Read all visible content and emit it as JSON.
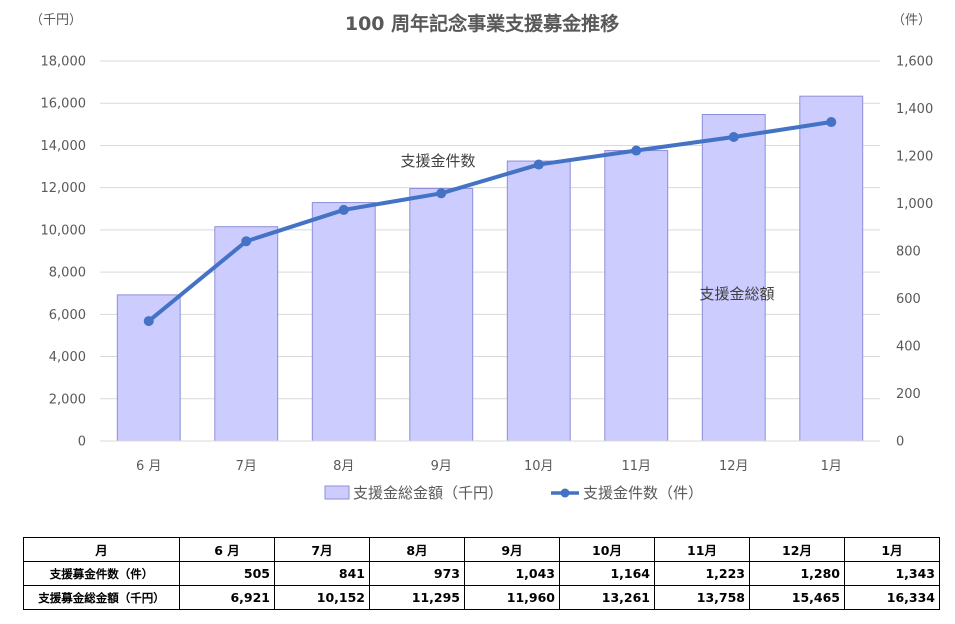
{
  "chart_data": {
    "type": "bar+line",
    "title": "100 周年記念事業支援募金推移",
    "left_unit": "（千円）",
    "right_unit": "（件）",
    "categories": [
      "6 月",
      "7月",
      "8月",
      "9月",
      "10月",
      "11月",
      "12月",
      "1月"
    ],
    "y_left": {
      "min": 0,
      "max": 18000,
      "step": 2000,
      "ticks": [
        "0",
        "2,000",
        "4,000",
        "6,000",
        "8,000",
        "10,000",
        "12,000",
        "14,000",
        "16,000",
        "18,000"
      ]
    },
    "y_right": {
      "min": 0,
      "max": 1600,
      "step": 200,
      "ticks": [
        "0",
        "200",
        "400",
        "600",
        "800",
        "1,000",
        "1,200",
        "1,400",
        "1,600"
      ]
    },
    "grid": true,
    "legend_position": "bottom",
    "series": [
      {
        "name": "支援金総金額（千円）",
        "type": "bar",
        "axis": "left",
        "color": "#ccccff",
        "border": "#8f8fd9",
        "values": [
          6921,
          10152,
          11295,
          11960,
          13261,
          13758,
          15465,
          16334
        ]
      },
      {
        "name": "支援金件数（件）",
        "type": "line",
        "axis": "right",
        "color": "#4472c4",
        "values": [
          505,
          841,
          973,
          1043,
          1164,
          1223,
          1280,
          1343
        ]
      }
    ],
    "annotations": {
      "line_label": "支援金件数",
      "bar_label": "支援金総額"
    }
  },
  "table": {
    "header": [
      "月",
      "6 月",
      "7月",
      "8月",
      "9月",
      "10月",
      "11月",
      "12月",
      "1月"
    ],
    "rows": [
      {
        "label": "支援募金件数（件）",
        "values": [
          "505",
          "841",
          "973",
          "1,043",
          "1,164",
          "1,223",
          "1,280",
          "1,343"
        ]
      },
      {
        "label": "支援募金総金額（千円）",
        "values": [
          "6,921",
          "10,152",
          "11,295",
          "11,960",
          "13,261",
          "13,758",
          "15,465",
          "16,334"
        ]
      }
    ]
  }
}
